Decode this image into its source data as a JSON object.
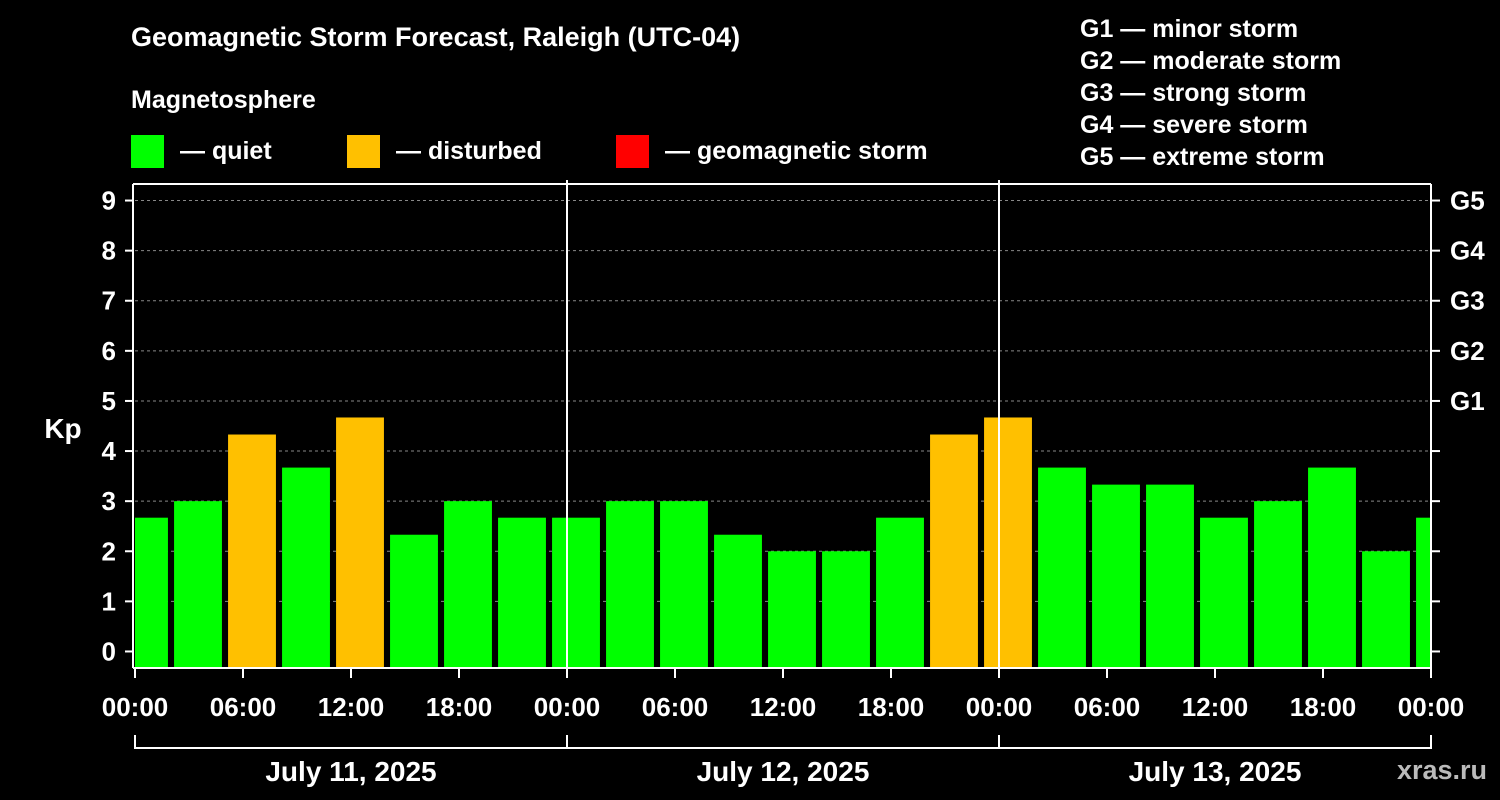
{
  "title": "Geomagnetic Storm Forecast, Raleigh (UTC-04)",
  "subtitle": "Magnetosphere",
  "legend": [
    {
      "label": "— quiet",
      "color": "#00ff00"
    },
    {
      "label": "— disturbed",
      "color": "#ffc000"
    },
    {
      "label": "— geomagnetic storm",
      "color": "#ff0000"
    }
  ],
  "g_legend": [
    "G1 — minor storm",
    "G2 — moderate storm",
    "G3 — strong storm",
    "G4 — severe storm",
    "G5 — extreme storm"
  ],
  "watermark": "xras.ru",
  "chart_data": {
    "type": "bar",
    "title": "Geomagnetic Storm Forecast, Raleigh (UTC-04)",
    "ylabel": "Kp",
    "ylim": [
      -0.33,
      9.33
    ],
    "yticks": [
      "0",
      "1",
      "2",
      "3",
      "4",
      "5",
      "6",
      "7",
      "8",
      "9"
    ],
    "right_ticks": [
      {
        "value": 5,
        "label": "G1"
      },
      {
        "value": 6,
        "label": "G2"
      },
      {
        "value": 7,
        "label": "G3"
      },
      {
        "value": 8,
        "label": "G4"
      },
      {
        "value": 9,
        "label": "G5"
      }
    ],
    "xlim_hours": [
      0,
      72
    ],
    "xticks": [
      {
        "hour": 0,
        "label": "00:00"
      },
      {
        "hour": 6,
        "label": "06:00"
      },
      {
        "hour": 12,
        "label": "12:00"
      },
      {
        "hour": 18,
        "label": "18:00"
      },
      {
        "hour": 24,
        "label": "00:00"
      },
      {
        "hour": 30,
        "label": "06:00"
      },
      {
        "hour": 36,
        "label": "12:00"
      },
      {
        "hour": 42,
        "label": "18:00"
      },
      {
        "hour": 48,
        "label": "00:00"
      },
      {
        "hour": 54,
        "label": "06:00"
      },
      {
        "hour": 60,
        "label": "12:00"
      },
      {
        "hour": 66,
        "label": "18:00"
      },
      {
        "hour": 72,
        "label": "00:00"
      }
    ],
    "days": [
      {
        "label": "July 11, 2025",
        "start": 0,
        "end": 24
      },
      {
        "label": "July 12, 2025",
        "start": 24,
        "end": 48
      },
      {
        "label": "July 13, 2025",
        "start": 48,
        "end": 72
      }
    ],
    "bars": [
      {
        "start": 0,
        "end": 1.83,
        "value": 2.67,
        "status": "quiet"
      },
      {
        "start": 2.17,
        "end": 4.83,
        "value": 3.0,
        "status": "quiet"
      },
      {
        "start": 5.17,
        "end": 7.83,
        "value": 4.33,
        "status": "disturbed"
      },
      {
        "start": 8.17,
        "end": 10.83,
        "value": 3.67,
        "status": "quiet"
      },
      {
        "start": 11.17,
        "end": 13.83,
        "value": 4.67,
        "status": "disturbed"
      },
      {
        "start": 14.17,
        "end": 16.83,
        "value": 2.33,
        "status": "quiet"
      },
      {
        "start": 17.17,
        "end": 19.83,
        "value": 3.0,
        "status": "quiet"
      },
      {
        "start": 20.17,
        "end": 22.83,
        "value": 2.67,
        "status": "quiet"
      },
      {
        "start": 23.17,
        "end": 25.83,
        "value": 2.67,
        "status": "quiet"
      },
      {
        "start": 26.17,
        "end": 28.83,
        "value": 3.0,
        "status": "quiet"
      },
      {
        "start": 29.17,
        "end": 31.83,
        "value": 3.0,
        "status": "quiet"
      },
      {
        "start": 32.17,
        "end": 34.83,
        "value": 2.33,
        "status": "quiet"
      },
      {
        "start": 35.17,
        "end": 37.83,
        "value": 2.0,
        "status": "quiet"
      },
      {
        "start": 38.17,
        "end": 40.83,
        "value": 2.0,
        "status": "quiet"
      },
      {
        "start": 41.17,
        "end": 43.83,
        "value": 2.67,
        "status": "quiet"
      },
      {
        "start": 44.17,
        "end": 46.83,
        "value": 4.33,
        "status": "disturbed"
      },
      {
        "start": 47.17,
        "end": 49.83,
        "value": 4.67,
        "status": "disturbed"
      },
      {
        "start": 50.17,
        "end": 52.83,
        "value": 3.67,
        "status": "quiet"
      },
      {
        "start": 53.17,
        "end": 55.83,
        "value": 3.33,
        "status": "quiet"
      },
      {
        "start": 56.17,
        "end": 58.83,
        "value": 3.33,
        "status": "quiet"
      },
      {
        "start": 59.17,
        "end": 61.83,
        "value": 2.67,
        "status": "quiet"
      },
      {
        "start": 62.17,
        "end": 64.83,
        "value": 3.0,
        "status": "quiet"
      },
      {
        "start": 65.17,
        "end": 67.83,
        "value": 3.67,
        "status": "quiet"
      },
      {
        "start": 68.17,
        "end": 70.83,
        "value": 2.0,
        "status": "quiet"
      },
      {
        "start": 71.17,
        "end": 72,
        "value": 2.67,
        "status": "quiet"
      }
    ],
    "colors": {
      "quiet": "#00ff00",
      "disturbed": "#ffc000",
      "storm": "#ff0000"
    }
  }
}
